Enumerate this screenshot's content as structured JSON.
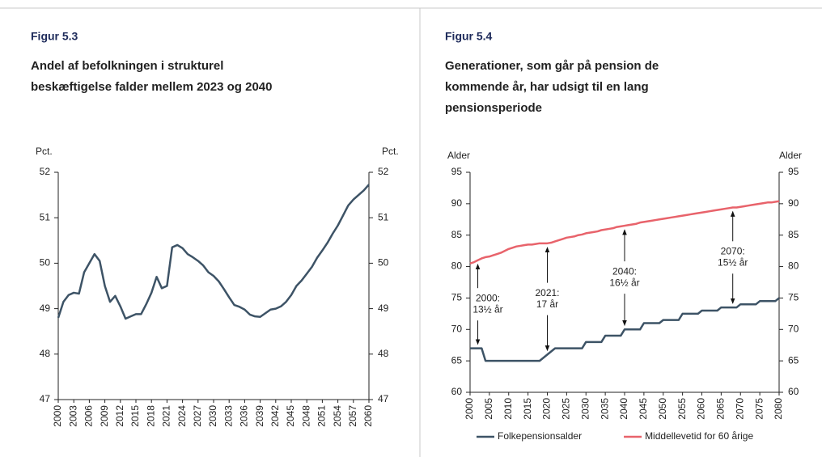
{
  "chart_data": [
    {
      "type": "line",
      "title": "Figur 5.3",
      "subtitle": [
        "Andel af befolkningen i strukturel",
        "beskæftigelse falder mellem 2023 og 2040"
      ],
      "ylabel": "Pct.",
      "y2label": "Pct.",
      "x": [
        2000,
        2001,
        2002,
        2003,
        2004,
        2005,
        2006,
        2007,
        2008,
        2009,
        2010,
        2011,
        2012,
        2013,
        2014,
        2015,
        2016,
        2017,
        2018,
        2019,
        2020,
        2021,
        2022,
        2023,
        2024,
        2025,
        2026,
        2027,
        2028,
        2029,
        2030,
        2031,
        2032,
        2033,
        2034,
        2035,
        2036,
        2037,
        2038,
        2039,
        2040,
        2041,
        2042,
        2043,
        2044,
        2045,
        2046,
        2047,
        2048,
        2049,
        2050,
        2051,
        2052,
        2053,
        2054,
        2055,
        2056,
        2057,
        2058,
        2059,
        2060
      ],
      "values": [
        48.8,
        49.15,
        49.3,
        49.35,
        49.33,
        49.8,
        50.0,
        50.2,
        50.05,
        49.5,
        49.15,
        49.28,
        49.05,
        48.78,
        48.83,
        48.88,
        48.88,
        49.1,
        49.35,
        49.7,
        49.45,
        49.5,
        50.35,
        50.4,
        50.33,
        50.2,
        50.13,
        50.05,
        49.95,
        49.8,
        49.72,
        49.6,
        49.43,
        49.25,
        49.08,
        49.04,
        48.98,
        48.87,
        48.83,
        48.82,
        48.9,
        48.98,
        49.0,
        49.05,
        49.15,
        49.3,
        49.5,
        49.62,
        49.77,
        49.92,
        50.12,
        50.28,
        50.45,
        50.65,
        50.83,
        51.05,
        51.27,
        51.4,
        51.5,
        51.6,
        51.73
      ],
      "color": "#3d5366",
      "xlim": [
        2000,
        2060
      ],
      "xticks": [
        2000,
        2003,
        2006,
        2009,
        2012,
        2015,
        2018,
        2021,
        2024,
        2027,
        2030,
        2033,
        2036,
        2039,
        2042,
        2045,
        2048,
        2051,
        2054,
        2057,
        2060
      ],
      "ylim": [
        47,
        52
      ],
      "yticks": [
        47,
        48,
        49,
        50,
        51,
        52
      ],
      "grid": false
    },
    {
      "type": "line",
      "title": "Figur 5.4",
      "subtitle": [
        "Generationer, som går på pension de",
        "kommende år, har udsigt til en lang",
        "pensionsperiode"
      ],
      "ylabel": "Alder",
      "y2label": "Alder",
      "x": [
        2000,
        2001,
        2002,
        2003,
        2004,
        2005,
        2006,
        2007,
        2008,
        2009,
        2010,
        2011,
        2012,
        2013,
        2014,
        2015,
        2016,
        2017,
        2018,
        2019,
        2020,
        2021,
        2022,
        2023,
        2024,
        2025,
        2026,
        2027,
        2028,
        2029,
        2030,
        2031,
        2032,
        2033,
        2034,
        2035,
        2036,
        2037,
        2038,
        2039,
        2040,
        2041,
        2042,
        2043,
        2044,
        2045,
        2046,
        2047,
        2048,
        2049,
        2050,
        2051,
        2052,
        2053,
        2054,
        2055,
        2056,
        2057,
        2058,
        2059,
        2060,
        2061,
        2062,
        2063,
        2064,
        2065,
        2066,
        2067,
        2068,
        2069,
        2070,
        2071,
        2072,
        2073,
        2074,
        2075,
        2076,
        2077,
        2078,
        2079,
        2080
      ],
      "series": [
        {
          "name": "Folkepensionsalder",
          "color": "#3d5366",
          "values": [
            67,
            67,
            67,
            67,
            65,
            65,
            65,
            65,
            65,
            65,
            65,
            65,
            65,
            65,
            65,
            65,
            65,
            65,
            65,
            65.5,
            66,
            66.5,
            67,
            67,
            67,
            67,
            67,
            67,
            67,
            67,
            68,
            68,
            68,
            68,
            68,
            69,
            69,
            69,
            69,
            69,
            70,
            70,
            70,
            70,
            70,
            71,
            71,
            71,
            71,
            71,
            71.5,
            71.5,
            71.5,
            71.5,
            71.5,
            72.5,
            72.5,
            72.5,
            72.5,
            72.5,
            73,
            73,
            73,
            73,
            73,
            73.5,
            73.5,
            73.5,
            73.5,
            73.5,
            74,
            74,
            74,
            74,
            74,
            74.5,
            74.5,
            74.5,
            74.5,
            74.5,
            75
          ]
        },
        {
          "name": "Middellevetid for 60 årige",
          "color": "#e8636b",
          "values": [
            80.5,
            80.7,
            81.0,
            81.3,
            81.5,
            81.6,
            81.8,
            82.0,
            82.2,
            82.5,
            82.8,
            83.0,
            83.2,
            83.3,
            83.4,
            83.5,
            83.5,
            83.6,
            83.7,
            83.7,
            83.7,
            83.8,
            84.0,
            84.2,
            84.4,
            84.6,
            84.7,
            84.8,
            85.0,
            85.1,
            85.3,
            85.4,
            85.5,
            85.6,
            85.8,
            85.9,
            86.0,
            86.1,
            86.3,
            86.4,
            86.5,
            86.6,
            86.7,
            86.8,
            87.0,
            87.1,
            87.2,
            87.3,
            87.4,
            87.5,
            87.6,
            87.7,
            87.8,
            87.9,
            88.0,
            88.1,
            88.2,
            88.3,
            88.4,
            88.5,
            88.6,
            88.7,
            88.8,
            88.9,
            89.0,
            89.1,
            89.2,
            89.3,
            89.4,
            89.4,
            89.5,
            89.6,
            89.7,
            89.8,
            89.9,
            90.0,
            90.1,
            90.2,
            90.2,
            90.3,
            90.4
          ]
        }
      ],
      "annotations": [
        {
          "x": 2002,
          "text": [
            "2000:",
            "13½ år"
          ]
        },
        {
          "x": 2020,
          "text": [
            "2021:",
            "17 år"
          ]
        },
        {
          "x": 2040,
          "text": [
            "2040:",
            "16½ år"
          ]
        },
        {
          "x": 2068,
          "text": [
            "2070:",
            "15½ år"
          ]
        }
      ],
      "xlim": [
        2000,
        2080
      ],
      "xticks": [
        2000,
        2005,
        2010,
        2015,
        2020,
        2025,
        2030,
        2035,
        2040,
        2045,
        2050,
        2055,
        2060,
        2065,
        2070,
        2075,
        2080
      ],
      "ylim": [
        60,
        95
      ],
      "yticks": [
        60,
        65,
        70,
        75,
        80,
        85,
        90,
        95
      ],
      "grid": false,
      "legend": "bottom"
    }
  ]
}
